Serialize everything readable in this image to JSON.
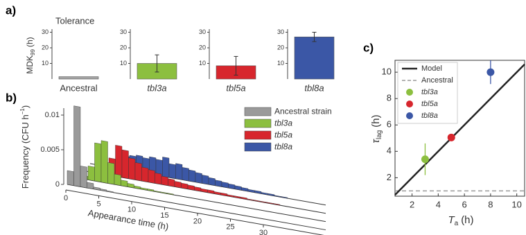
{
  "chart_data": [
    {
      "type": "bar",
      "panel_label": "a)",
      "title": "Tolerance",
      "ylabel": {
        "text": "MDK",
        "sub": "99",
        "unit": "(h)"
      },
      "categories": [
        "Ancestral",
        "tbl3a",
        "tbl5a",
        "tbl8a"
      ],
      "values": [
        1.5,
        10,
        8.5,
        27
      ],
      "errors": [
        null,
        5.5,
        6,
        3
      ],
      "colors": [
        "#a3a3a3",
        "#8cbf3f",
        "#d7262d",
        "#3b57a6"
      ],
      "ylim": [
        0,
        32
      ],
      "yticks": [
        10,
        20,
        30
      ]
    },
    {
      "type": "histogram",
      "panel_label": "b)",
      "ylabel": {
        "text": "Frequency (CFU h",
        "sup": "−1",
        "end": ")"
      },
      "xlabel": "Appearance time (h)",
      "bins": [
        0,
        1,
        2,
        3,
        4,
        5,
        6,
        7,
        8,
        9,
        10,
        11,
        12,
        13,
        14,
        15,
        16,
        17,
        18,
        19,
        20,
        21,
        22,
        23,
        24,
        25,
        26,
        27,
        28,
        29,
        30
      ],
      "series": [
        {
          "name": "Ancestral strain",
          "color": "#9a9a9a",
          "values": [
            0.002,
            0.0115,
            0.003,
            0.0008,
            0.0003,
            0.0002,
            0.0001,
            0,
            0,
            0,
            0,
            0,
            0,
            0,
            0,
            0,
            0,
            0,
            0,
            0,
            0,
            0,
            0,
            0,
            0,
            0,
            0,
            0,
            0,
            0
          ]
        },
        {
          "name": "tbl3a",
          "color": "#8cbf3f",
          "values": [
            0,
            0.0005,
            0.002,
            0.0055,
            0.006,
            0.003,
            0.0015,
            0.0008,
            0.0005,
            0.0003,
            0.0002,
            0.0002,
            0.0001,
            0.0001,
            0.0001,
            0,
            0,
            0,
            0,
            0,
            0,
            0,
            0,
            0,
            0,
            0,
            0,
            0,
            0,
            0
          ]
        },
        {
          "name": "tbl5a",
          "color": "#d7262d",
          "values": [
            0,
            0,
            0.0003,
            0.001,
            0.0025,
            0.0045,
            0.004,
            0.003,
            0.0025,
            0.002,
            0.0018,
            0.0015,
            0.0012,
            0.001,
            0.0008,
            0.0007,
            0.0006,
            0.0005,
            0.0004,
            0.0004,
            0.0003,
            0.0003,
            0.0002,
            0.0002,
            0.0002,
            0.0001,
            0.0001,
            0.0001,
            0.0001,
            0.0001
          ]
        },
        {
          "name": "tbl8a",
          "color": "#3b57a6",
          "values": [
            0,
            0,
            0.0002,
            0.0008,
            0.0015,
            0.002,
            0.0022,
            0.0024,
            0.0022,
            0.0025,
            0.0023,
            0.0028,
            0.002,
            0.0022,
            0.0018,
            0.0016,
            0.0014,
            0.0012,
            0.001,
            0.0008,
            0.0007,
            0.0006,
            0.0005,
            0.0004,
            0.0003,
            0.0003,
            0.0002,
            0.0002,
            0.0001,
            0.0001
          ]
        }
      ],
      "ylim": [
        0,
        0.011
      ],
      "yticks": [
        0,
        0.005,
        0.01
      ],
      "xlim": [
        0,
        30
      ],
      "xticks": [
        0,
        5,
        10,
        15,
        20,
        25,
        30
      ]
    },
    {
      "type": "scatter",
      "panel_label": "c)",
      "xlabel": {
        "text": "T",
        "sub": "a",
        "unit": "(h)"
      },
      "ylabel": {
        "text": "τ",
        "sub": "lag",
        "unit": "(h)"
      },
      "model": {
        "name": "Model"
      },
      "baseline": {
        "name": "Ancestral",
        "value": 1
      },
      "series": [
        {
          "name": "tbl3a",
          "color": "#8cbf3f",
          "x": [
            3
          ],
          "values": [
            3.4
          ],
          "errors": [
            1.2
          ]
        },
        {
          "name": "tbl5a",
          "color": "#d7262d",
          "x": [
            5
          ],
          "values": [
            5.05
          ],
          "errors": [
            0.2
          ]
        },
        {
          "name": "tbl8a",
          "color": "#3b57a6",
          "x": [
            8
          ],
          "values": [
            10
          ],
          "errors": [
            0.9
          ]
        }
      ],
      "xlim": [
        0.7,
        10.6
      ],
      "ylim": [
        0.6,
        10.9
      ],
      "xticks": [
        2,
        4,
        6,
        8,
        10
      ],
      "yticks": [
        2,
        4,
        6,
        8,
        10
      ]
    }
  ]
}
